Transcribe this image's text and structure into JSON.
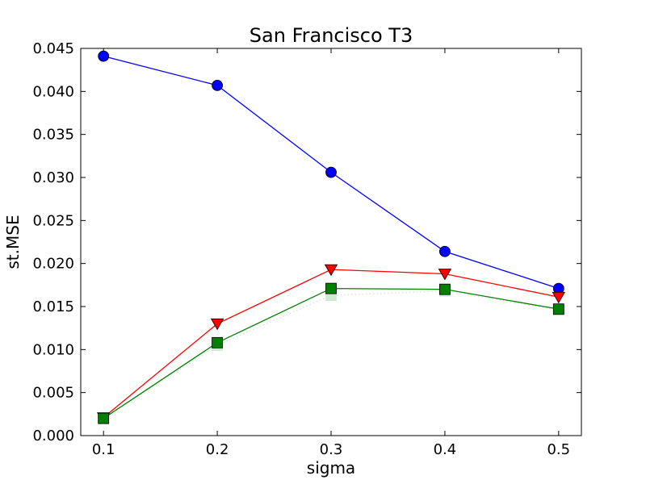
{
  "chart_data": {
    "type": "line",
    "title": "San Francisco T3",
    "xlabel": "sigma",
    "ylabel": "st.MSE",
    "xlim": [
      0.08,
      0.52
    ],
    "ylim": [
      0.0,
      0.045
    ],
    "x": [
      0.1,
      0.2,
      0.3,
      0.4,
      0.5
    ],
    "x_ticks": [
      0.1,
      0.2,
      0.3,
      0.4,
      0.5
    ],
    "y_ticks": [
      0.0,
      0.005,
      0.01,
      0.015,
      0.02,
      0.025,
      0.03,
      0.035,
      0.04,
      0.045
    ],
    "x_tick_labels": [
      "0.1",
      "0.2",
      "0.3",
      "0.4",
      "0.5"
    ],
    "y_tick_labels": [
      "0.000",
      "0.005",
      "0.010",
      "0.015",
      "0.020",
      "0.025",
      "0.030",
      "0.035",
      "0.040",
      "0.045"
    ],
    "grid": false,
    "legend": false,
    "series": [
      {
        "color": "#0000ff",
        "marker": "circle",
        "line_style": "solid",
        "values": [
          0.0441,
          0.0407,
          0.0306,
          0.0214,
          0.0171
        ]
      },
      {
        "color": "#ff0000",
        "marker": "triangle-down",
        "line_style": "solid",
        "values": [
          0.0021,
          0.013,
          0.0193,
          0.0188,
          0.0161
        ]
      },
      {
        "color": "#008000",
        "marker": "square",
        "line_style": "solid",
        "values": [
          0.002,
          0.0108,
          0.0171,
          0.017,
          0.0147
        ]
      },
      {
        "color": "#cfe6cf",
        "marker": "square",
        "line_style": "dotted",
        "values": [
          0.002,
          0.0105,
          0.0163,
          0.0168,
          0.0146
        ]
      }
    ]
  }
}
